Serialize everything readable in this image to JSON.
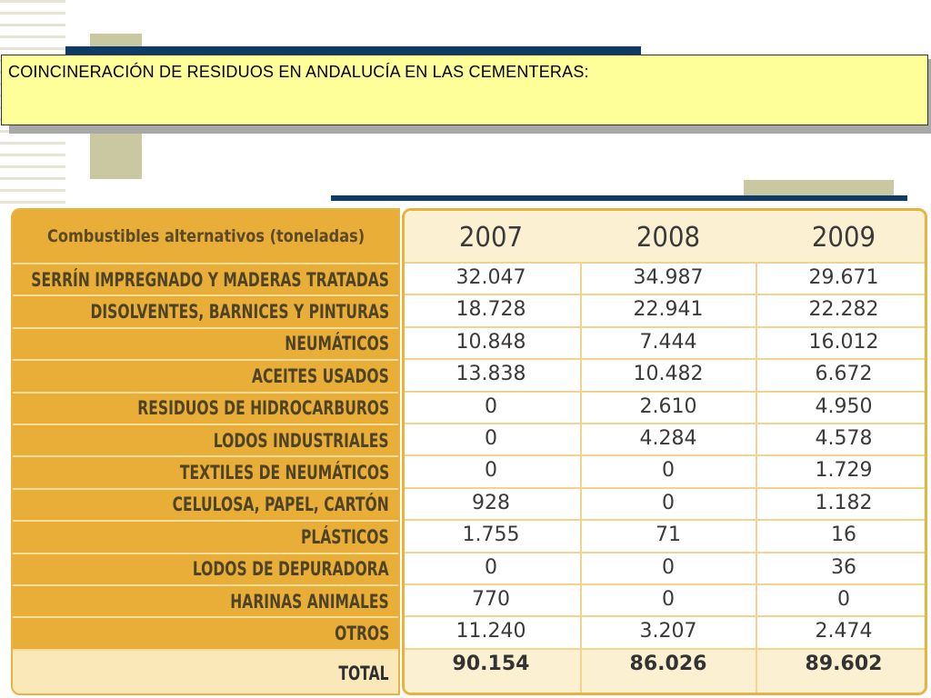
{
  "title": "COINCINERACIÓN DE RESIDUOS EN ANDALUCÍA EN LAS CEMENTERAS:",
  "table": {
    "header_label": "Combustibles alternativos  (toneladas)",
    "years": [
      "2007",
      "2008",
      "2009"
    ],
    "rows": [
      {
        "label": "SERRÍN IMPREGNADO Y MADERAS TRATADAS",
        "values": [
          "32.047",
          "34.987",
          "29.671"
        ]
      },
      {
        "label": "DISOLVENTES, BARNICES Y PINTURAS",
        "values": [
          "18.728",
          "22.941",
          "22.282"
        ]
      },
      {
        "label": "NEUMÁTICOS",
        "values": [
          "10.848",
          "7.444",
          "16.012"
        ]
      },
      {
        "label": "ACEITES USADOS",
        "values": [
          "13.838",
          "10.482",
          "6.672"
        ]
      },
      {
        "label": "RESIDUOS DE HIDROCARBUROS",
        "values": [
          "0",
          "2.610",
          "4.950"
        ]
      },
      {
        "label": "LODOS INDUSTRIALES",
        "values": [
          "0",
          "4.284",
          "4.578"
        ]
      },
      {
        "label": "TEXTILES DE NEUMÁTICOS",
        "values": [
          "0",
          "0",
          "1.729"
        ]
      },
      {
        "label": "CELULOSA, PAPEL, CARTÓN",
        "values": [
          "928",
          "0",
          "1.182"
        ]
      },
      {
        "label": "PLÁSTICOS",
        "values": [
          "1.755",
          "71",
          "16"
        ]
      },
      {
        "label": "LODOS DE DEPURADORA",
        "values": [
          "0",
          "0",
          "36"
        ]
      },
      {
        "label": "HARINAS ANIMALES",
        "values": [
          "770",
          "0",
          "0"
        ]
      },
      {
        "label": "OTROS",
        "values": [
          "11.240",
          "3.207",
          "2.474"
        ]
      }
    ],
    "total": {
      "label": "TOTAL",
      "values": [
        "90.154",
        "86.026",
        "89.602"
      ]
    }
  },
  "colors": {
    "accent": "#e8ae38",
    "navy": "#0f3b68",
    "olive": "#c9c8a0",
    "title_bg": "#ffff99"
  }
}
